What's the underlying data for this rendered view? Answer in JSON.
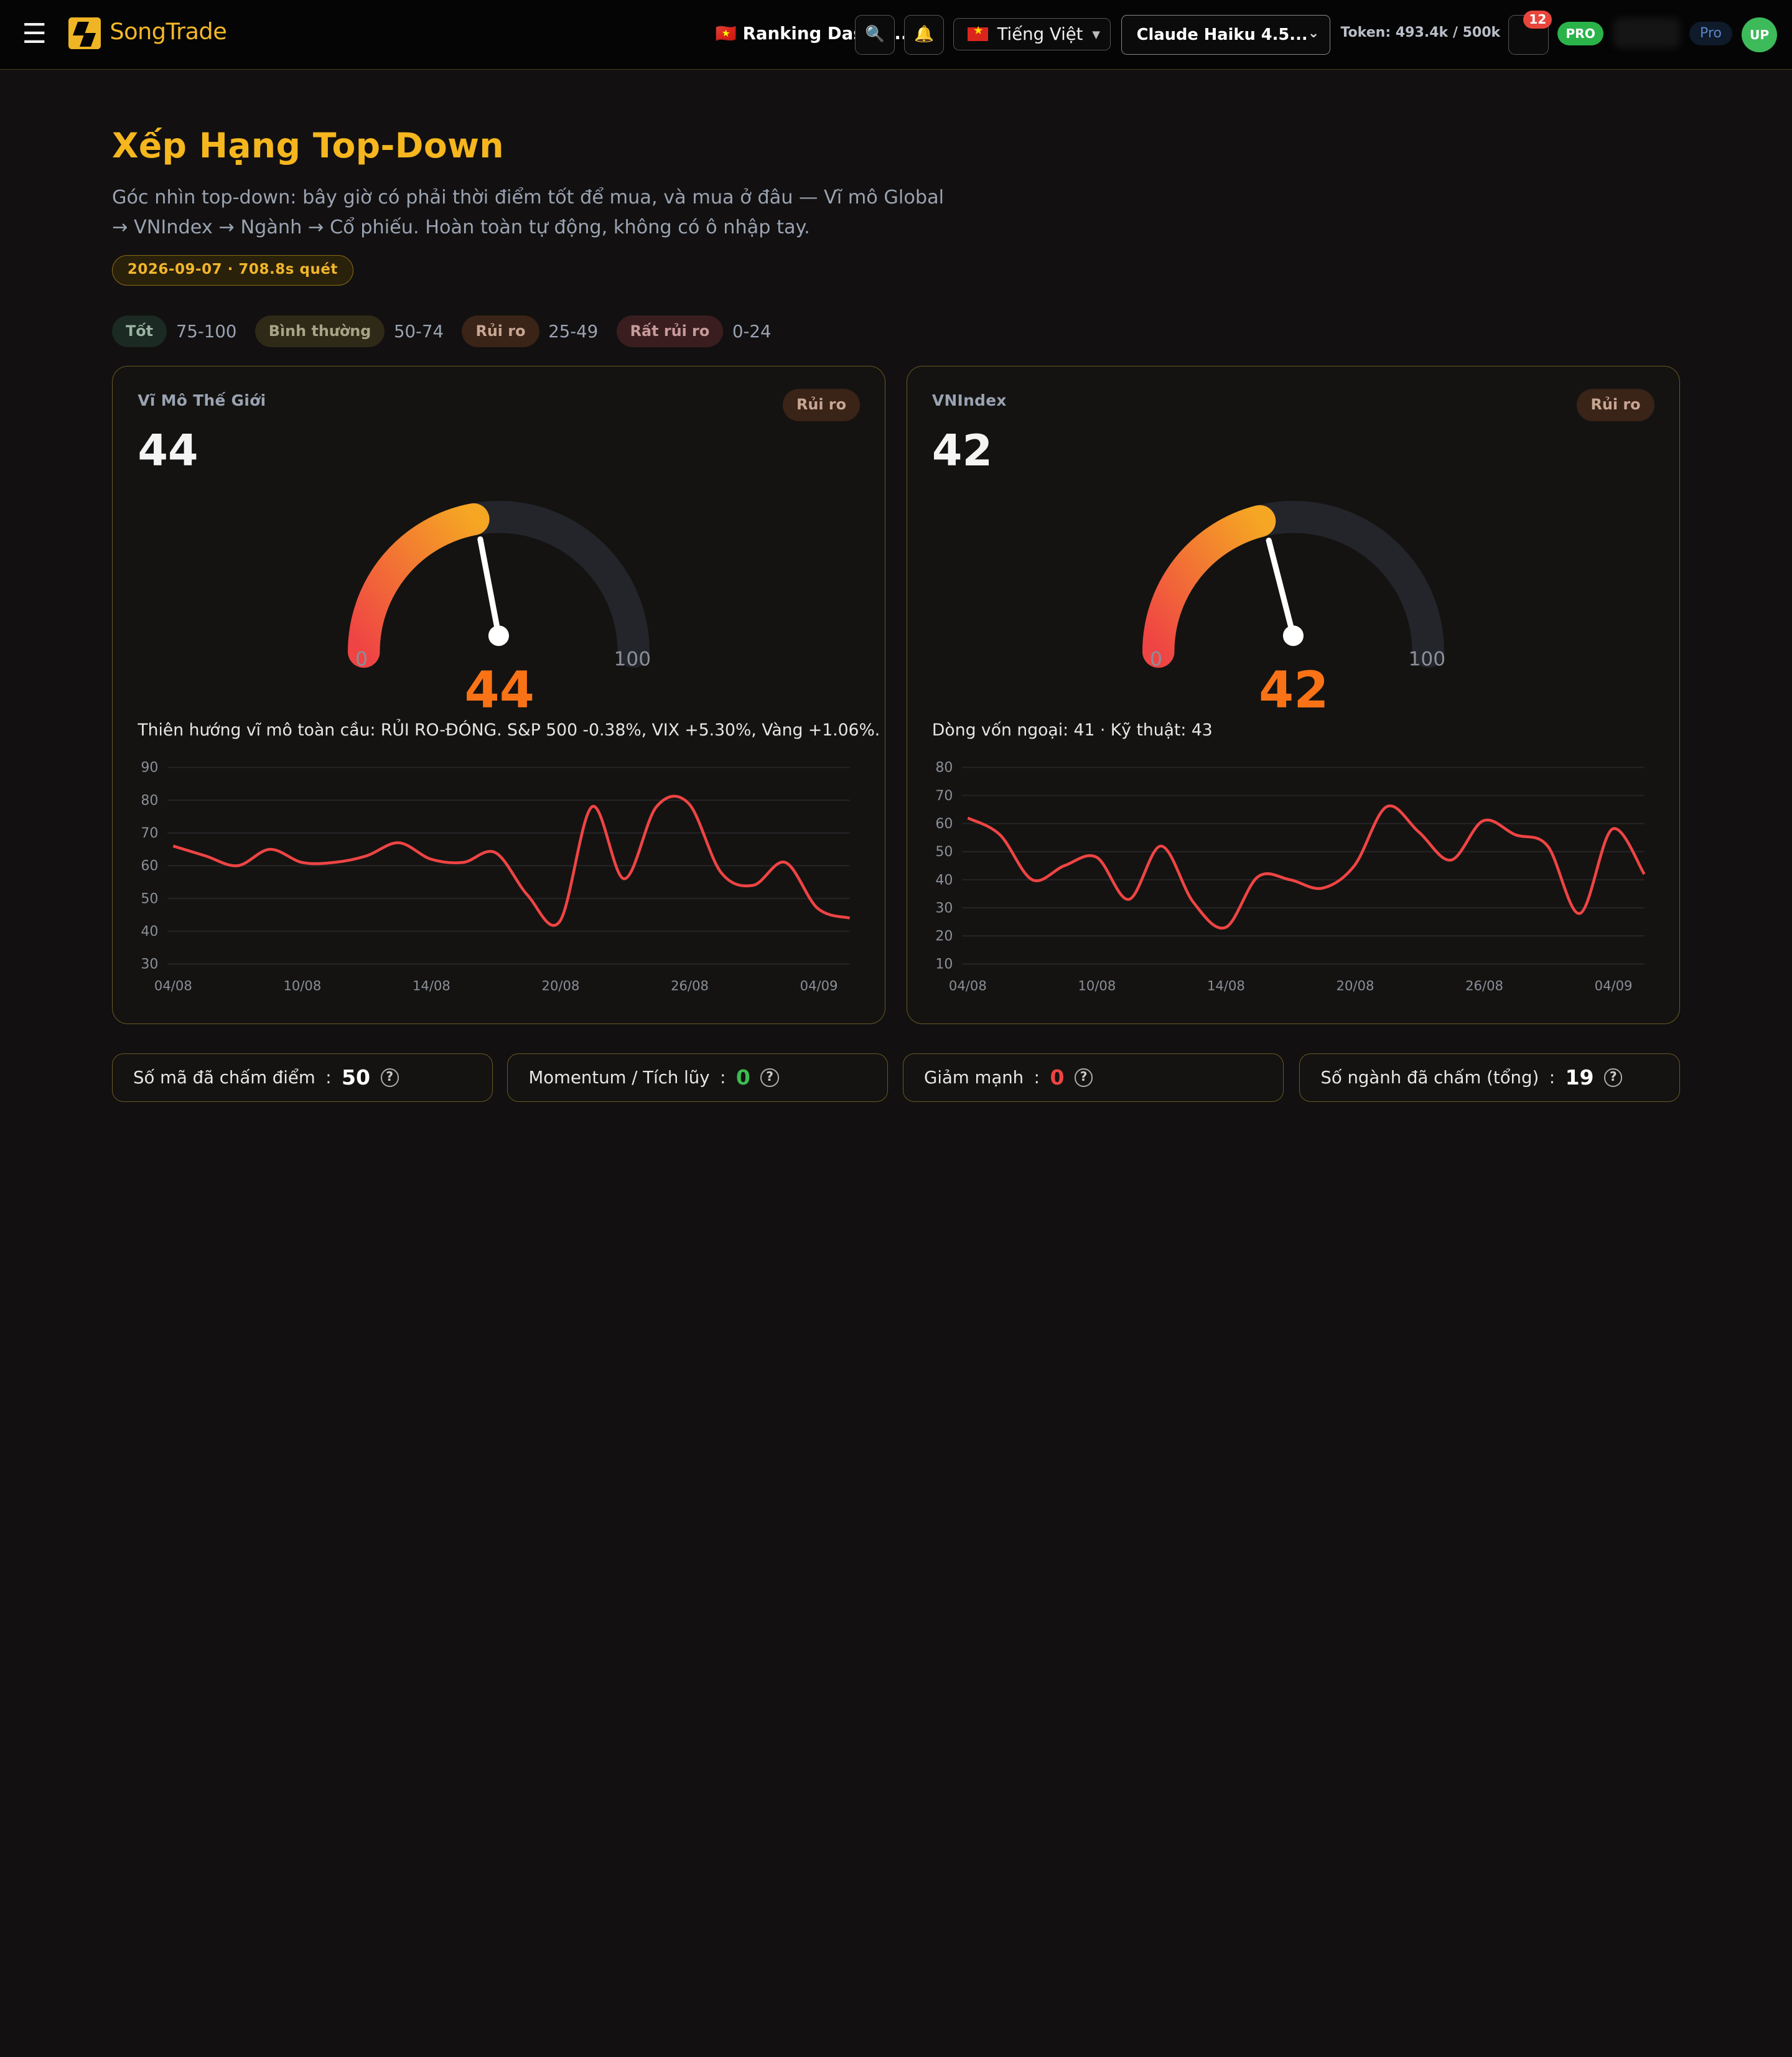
{
  "header": {
    "menu_icon": "☰",
    "logo_text": "SongTrade",
    "page_name": "🇻🇳 Ranking Dashb...",
    "icon_btn_1": "🔍",
    "icon_btn_2": "🔔",
    "language": "Tiếng Việt",
    "model": "Claude Haiku 4.5...",
    "token": "Token: 493.4k / 500k",
    "notif_count": "12",
    "plan_badge": "PRO",
    "plan_chip": "Pro",
    "avatar": "UP"
  },
  "page": {
    "title": "Xếp Hạng Top-Down",
    "description": "Góc nhìn top-down: bây giờ có phải thời điểm tốt để mua, và mua ở đâu — Vĩ mô Global → VNIndex → Ngành → Cổ phiếu. Hoàn toàn tự động, không có ô nhập tay.",
    "scan_info": "2026-09-07 · 708.8s quét"
  },
  "legend": [
    {
      "label": "Tốt",
      "range": "75-100",
      "color": "#9ab3a2"
    },
    {
      "label": "Bình thường",
      "range": "50-74",
      "color": "#a7a487"
    },
    {
      "label": "Rủi ro",
      "range": "25-49",
      "color": "#c7a693"
    },
    {
      "label": "Rất rủi ro",
      "range": "0-24",
      "color": "#c79a9b"
    }
  ],
  "cards": [
    {
      "label": "Vĩ Mô Thế Giới",
      "badge": "Rủi ro",
      "score": "44",
      "gauge_min": "0",
      "gauge_max": "100",
      "note": "Thiên hướng vĩ mô toàn cầu: RỦI RO-ĐÓNG. S&P 500 -0.38%, VIX +5.30%, Vàng +1.06%."
    },
    {
      "label": "VNIndex",
      "badge": "Rủi ro",
      "score": "42",
      "gauge_min": "0",
      "gauge_max": "100",
      "note": "Dòng vốn ngoại: 41 · Kỹ thuật: 43"
    }
  ],
  "chart_data": [
    {
      "type": "line",
      "line_color": "#ef4444",
      "ylim": [
        30,
        90
      ],
      "yticks": [
        30,
        40,
        50,
        60,
        70,
        80,
        90
      ],
      "xtick_labels": [
        "04/08",
        "10/08",
        "14/08",
        "20/08",
        "26/08",
        "04/09"
      ],
      "series": [
        {
          "values": [
            66,
            63,
            60,
            65,
            61,
            61,
            63,
            67,
            62,
            61,
            64,
            51,
            43,
            78,
            56,
            78,
            79,
            58,
            54,
            61,
            47,
            44
          ]
        }
      ]
    },
    {
      "type": "line",
      "line_color": "#ef4444",
      "ylim": [
        10,
        80
      ],
      "yticks": [
        10,
        20,
        30,
        40,
        50,
        60,
        70,
        80
      ],
      "xtick_labels": [
        "04/08",
        "10/08",
        "14/08",
        "20/08",
        "26/08",
        "04/09"
      ],
      "series": [
        {
          "values": [
            62,
            56,
            40,
            45,
            48,
            33,
            52,
            32,
            23,
            41,
            40,
            37,
            45,
            66,
            57,
            47,
            61,
            56,
            52,
            28,
            58,
            42
          ]
        }
      ]
    }
  ],
  "stats": [
    {
      "label": "Số mã đã chấm điểm",
      "value": "50",
      "color": "#ffffff"
    },
    {
      "label": "Momentum / Tích lũy",
      "value": "0",
      "color": "#3dbb52"
    },
    {
      "label": "Giảm mạnh",
      "value": "0",
      "color": "#ef4444"
    },
    {
      "label": "Số ngành đã chấm (tổng)",
      "value": "19",
      "color": "#ffffff"
    }
  ],
  "gauge_value": [
    44,
    42
  ]
}
